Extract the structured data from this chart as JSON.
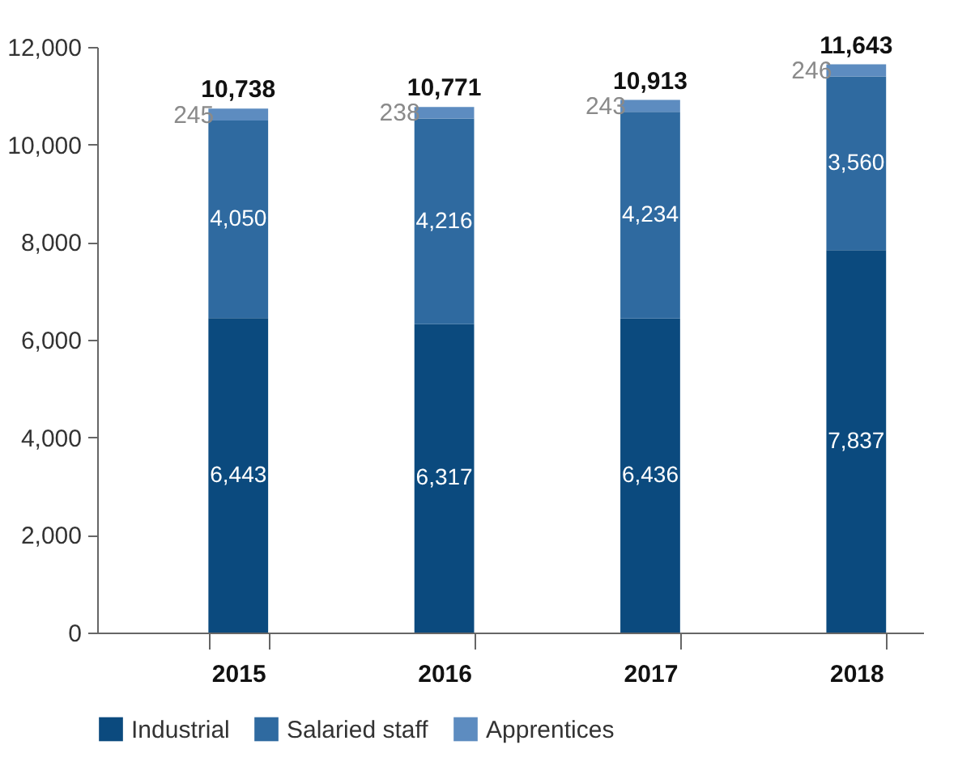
{
  "chart_data": {
    "type": "bar",
    "stacked": true,
    "categories": [
      "2015",
      "2016",
      "2017",
      "2018"
    ],
    "series": [
      {
        "name": "Industrial",
        "color": "#0b4a7e",
        "values": [
          6443,
          6317,
          6436,
          7837
        ],
        "value_labels": [
          "6,443",
          "6,317",
          "6,436",
          "7,837"
        ]
      },
      {
        "name": "Salaried staff",
        "color": "#2f6aa0",
        "values": [
          4050,
          4216,
          4234,
          3560
        ],
        "value_labels": [
          "4,050",
          "4,216",
          "4,234",
          "3,560"
        ]
      },
      {
        "name": "Apprentices",
        "color": "#5d8cc0",
        "values": [
          245,
          238,
          243,
          246
        ],
        "value_labels": [
          "245",
          "238",
          "243",
          "246"
        ]
      }
    ],
    "totals": [
      "10,738",
      "10,771",
      "10,913",
      "11,643"
    ],
    "ylim": [
      0,
      12000
    ],
    "yticks": [
      {
        "value": 0,
        "label": "0"
      },
      {
        "value": 2000,
        "label": "2,000"
      },
      {
        "value": 4000,
        "label": "4,000"
      },
      {
        "value": 6000,
        "label": "6,000"
      },
      {
        "value": 8000,
        "label": "8,000"
      },
      {
        "value": 10000,
        "label": "10,000"
      },
      {
        "value": 12000,
        "label": "12,000"
      }
    ],
    "legend": "bottom",
    "grid": false
  }
}
